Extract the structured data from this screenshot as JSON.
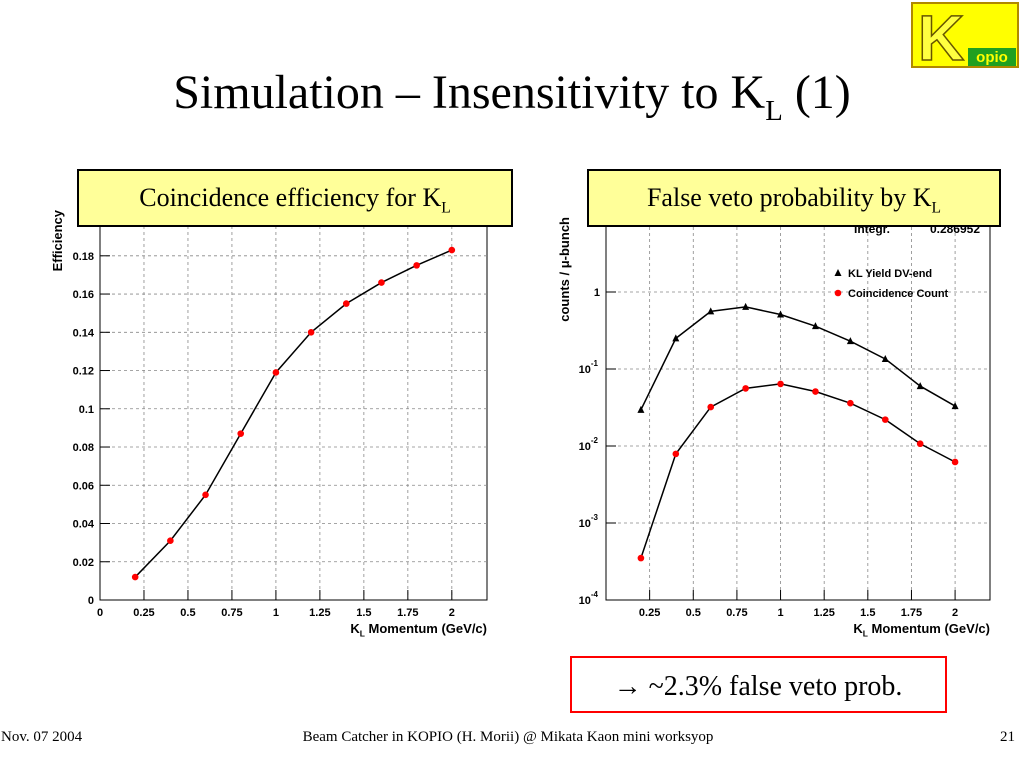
{
  "title": {
    "text": "Simulation – Insensitivity to K",
    "sub": "L",
    "after": " (1)"
  },
  "logo": {
    "letter": "K",
    "text": "opio"
  },
  "callout": "→ ~2.3% false veto prob.",
  "footer": {
    "left": "Nov. 07 2004",
    "center": "Beam Catcher in KOPIO (H. Morii) @ Mikata Kaon mini worksyop",
    "right": "21"
  },
  "chart_data": [
    {
      "type": "line",
      "title": {
        "text": "Coincidence efficiency for K",
        "sub": "L"
      },
      "x_label": {
        "text": "K",
        "sub": "L",
        "after": " Momentum (GeV/c)"
      },
      "y_label": "Efficiency",
      "x": [
        0.2,
        0.4,
        0.6,
        0.8,
        1.0,
        1.2,
        1.4,
        1.6,
        1.8,
        2.0
      ],
      "series": [
        {
          "color": "#ff0000",
          "marker": "circle",
          "values": [
            0.012,
            0.031,
            0.055,
            0.087,
            0.119,
            0.14,
            0.155,
            0.166,
            0.175,
            0.183
          ]
        }
      ],
      "line_color": "#000000",
      "xlim": [
        0,
        2.2
      ],
      "xticks": [
        0,
        0.25,
        0.5,
        0.75,
        1,
        1.25,
        1.5,
        1.75,
        2
      ],
      "ylim": [
        0,
        0.205
      ],
      "yticks": [
        0,
        0.02,
        0.04,
        0.06,
        0.08,
        0.1,
        0.12,
        0.14,
        0.16,
        0.18
      ],
      "grid": true,
      "log_y": false
    },
    {
      "type": "line",
      "title": {
        "text": "False veto probability by K",
        "sub": "L"
      },
      "x_label": {
        "text": "K",
        "sub": "L",
        "after": " Momentum (GeV/c)"
      },
      "y_label": "counts / μ-bunch",
      "x": [
        0.2,
        0.4,
        0.6,
        0.8,
        1.0,
        1.2,
        1.4,
        1.6,
        1.8,
        2.0
      ],
      "series": [
        {
          "name": "KL Yield  DV-end",
          "color": "#000000",
          "marker": "triangle",
          "values": [
            0.0295,
            0.25,
            0.56,
            0.64,
            0.51,
            0.36,
            0.23,
            0.135,
            0.06,
            0.033
          ]
        },
        {
          "name": "Coincidence Count",
          "color": "#ff0000",
          "marker": "circle",
          "values": [
            0.00035,
            0.0079,
            0.032,
            0.056,
            0.064,
            0.051,
            0.036,
            0.022,
            0.0107,
            0.0062
          ]
        }
      ],
      "line_color": "#000000",
      "stats": [
        {
          "label": "Integr.",
          "value": 0.286952
        }
      ],
      "xlim": [
        0,
        2.2
      ],
      "xticks": [
        0.25,
        0.5,
        0.75,
        1,
        1.25,
        1.5,
        1.75,
        2
      ],
      "ylim": [
        0.0001,
        10
      ],
      "yticks": [
        {
          "value": 0.0001,
          "label": "10-4"
        },
        {
          "value": 0.001,
          "label": "10-3"
        },
        {
          "value": 0.01,
          "label": "10-2"
        },
        {
          "value": 0.1,
          "label": "10-1"
        },
        1
      ],
      "grid": true,
      "log_y": true,
      "legend": "upper right"
    }
  ]
}
